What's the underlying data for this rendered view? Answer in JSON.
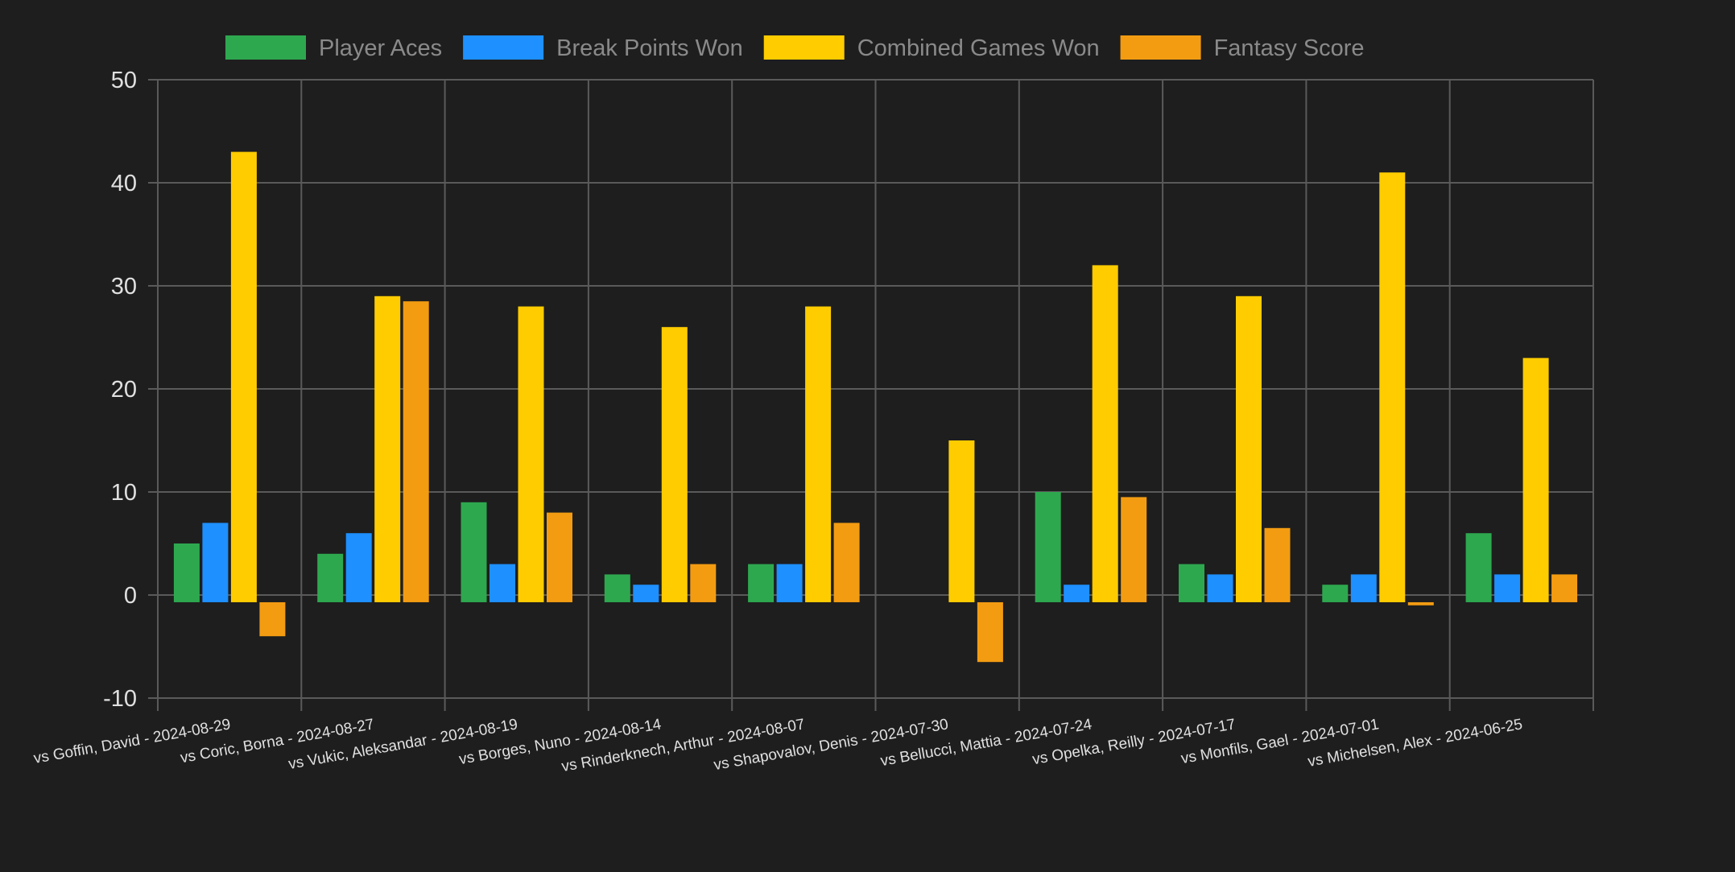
{
  "chart_data": {
    "type": "bar",
    "categories": [
      "vs Goffin, David - 2024-08-29",
      "vs Coric, Borna - 2024-08-27",
      "vs Vukic, Aleksandar - 2024-08-19",
      "vs Borges, Nuno - 2024-08-14",
      "vs Rinderknech, Arthur - 2024-08-07",
      "vs Shapovalov, Denis - 2024-07-30",
      "vs Bellucci, Mattia - 2024-07-24",
      "vs Opelka, Reilly - 2024-07-17",
      "vs Monfils, Gael - 2024-07-01",
      "vs Michelsen, Alex - 2024-06-25"
    ],
    "series": [
      {
        "name": "Player Aces",
        "color": "#2ea84f",
        "values": [
          5,
          4,
          9,
          2,
          3,
          0,
          10,
          3,
          1,
          6
        ]
      },
      {
        "name": "Break Points Won",
        "color": "#1e90ff",
        "values": [
          7,
          6,
          3,
          1,
          3,
          0,
          1,
          2,
          2,
          2
        ]
      },
      {
        "name": "Combined Games Won",
        "color": "#ffcc00",
        "values": [
          43,
          29,
          28,
          26,
          28,
          15,
          32,
          29,
          41,
          23
        ]
      },
      {
        "name": "Fantasy Score",
        "color": "#f39c12",
        "values": [
          -4,
          28.5,
          8,
          3,
          7,
          -6.5,
          9.5,
          6.5,
          -1,
          2
        ]
      }
    ],
    "ylim": [
      -10,
      50
    ],
    "yticks": [
      -10,
      0,
      10,
      20,
      30,
      40,
      50
    ],
    "bar_baseline": -0.7,
    "grid": true,
    "legend_position": "top",
    "title": "",
    "xlabel": "",
    "ylabel": ""
  }
}
